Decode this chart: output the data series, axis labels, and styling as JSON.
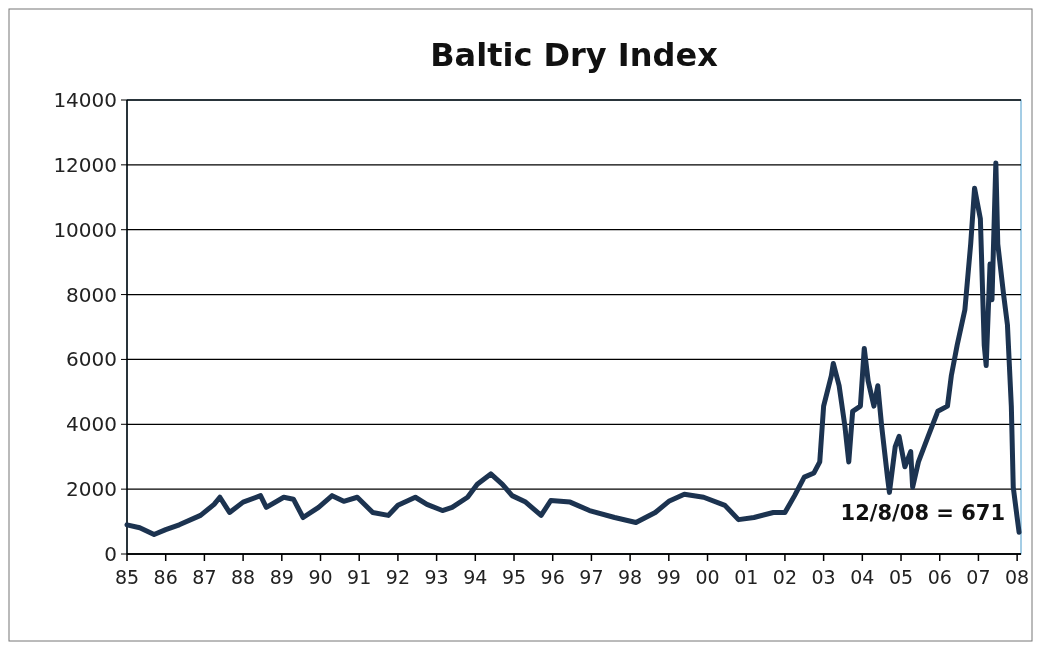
{
  "chart_data": {
    "type": "line",
    "title": "Baltic Dry Index",
    "x": [
      1985.0,
      1985.33,
      1985.7,
      1986.0,
      1986.35,
      1986.9,
      1987.25,
      1987.4,
      1987.65,
      1988.0,
      1988.45,
      1988.6,
      1989.05,
      1989.3,
      1989.55,
      1989.95,
      1990.3,
      1990.6,
      1990.95,
      1991.35,
      1991.75,
      1992.0,
      1992.45,
      1992.75,
      1993.15,
      1993.4,
      1993.8,
      1994.05,
      1994.4,
      1994.7,
      1994.95,
      1995.3,
      1995.7,
      1995.95,
      1996.45,
      1996.95,
      1997.6,
      1998.15,
      1998.65,
      1999.0,
      1999.4,
      1999.9,
      2000.45,
      2000.8,
      2001.2,
      2001.7,
      2002.0,
      2002.25,
      2002.5,
      2002.75,
      2002.9,
      2003.0,
      2003.2,
      2003.25,
      2003.4,
      2003.55,
      2003.65,
      2003.75,
      2003.95,
      2004.05,
      2004.15,
      2004.3,
      2004.4,
      2004.5,
      2004.65,
      2004.7,
      2004.85,
      2004.95,
      2005.1,
      2005.25,
      2005.3,
      2005.45,
      2005.7,
      2005.95,
      2006.2,
      2006.3,
      2006.45,
      2006.65,
      2006.8,
      2006.9,
      2007.05,
      2007.15,
      2007.2,
      2007.3,
      2007.35,
      2007.45,
      2007.5,
      2007.65,
      2007.75,
      2007.85,
      2007.9,
      2008.0,
      2008.05
    ],
    "series": [
      {
        "color": "#1c3350",
        "values": [
          900,
          810,
          600,
          750,
          900,
          1190,
          1530,
          1750,
          1280,
          1600,
          1800,
          1440,
          1750,
          1690,
          1125,
          1440,
          1800,
          1625,
          1750,
          1280,
          1190,
          1500,
          1750,
          1530,
          1340,
          1440,
          1750,
          2150,
          2470,
          2150,
          1800,
          1600,
          1190,
          1650,
          1600,
          1340,
          1125,
          970,
          1280,
          1625,
          1840,
          1750,
          1500,
          1060,
          1125,
          1280,
          1280,
          1800,
          2370,
          2500,
          2840,
          4560,
          5500,
          5875,
          5190,
          3940,
          2840,
          4400,
          4560,
          6340,
          5340,
          4560,
          5190,
          3940,
          2370,
          1900,
          3310,
          3625,
          2690,
          3160,
          2060,
          2840,
          3625,
          4400,
          4560,
          5500,
          6440,
          7530,
          9560,
          11280,
          10340,
          6440,
          5810,
          8940,
          7840,
          12060,
          9560,
          8000,
          7060,
          4560,
          2060,
          1125,
          671
        ]
      }
    ],
    "xlim": [
      1985,
      2008.1
    ],
    "xticks": [
      {
        "value": 1985,
        "label": "85"
      },
      {
        "value": 1986,
        "label": "86"
      },
      {
        "value": 1987,
        "label": "87"
      },
      {
        "value": 1988,
        "label": "88"
      },
      {
        "value": 1989,
        "label": "89"
      },
      {
        "value": 1990,
        "label": "90"
      },
      {
        "value": 1991,
        "label": "91"
      },
      {
        "value": 1992,
        "label": "92"
      },
      {
        "value": 1993,
        "label": "93"
      },
      {
        "value": 1994,
        "label": "94"
      },
      {
        "value": 1995,
        "label": "95"
      },
      {
        "value": 1996,
        "label": "96"
      },
      {
        "value": 1997,
        "label": "97"
      },
      {
        "value": 1998,
        "label": "98"
      },
      {
        "value": 1999,
        "label": "99"
      },
      {
        "value": 2000,
        "label": "00"
      },
      {
        "value": 2001,
        "label": "01"
      },
      {
        "value": 2002,
        "label": "02"
      },
      {
        "value": 2003,
        "label": "03"
      },
      {
        "value": 2004,
        "label": "04"
      },
      {
        "value": 2005,
        "label": "05"
      },
      {
        "value": 2006,
        "label": "06"
      },
      {
        "value": 2007,
        "label": "07"
      },
      {
        "value": 2008,
        "label": "08"
      }
    ],
    "ylim": [
      0,
      14000
    ],
    "yticks": [
      0,
      2000,
      4000,
      6000,
      8000,
      10000,
      12000,
      14000
    ],
    "grid": "y",
    "annotations": [
      {
        "text": "12/8/08 = 671",
        "x": 2008.05,
        "y": 671
      }
    ]
  }
}
